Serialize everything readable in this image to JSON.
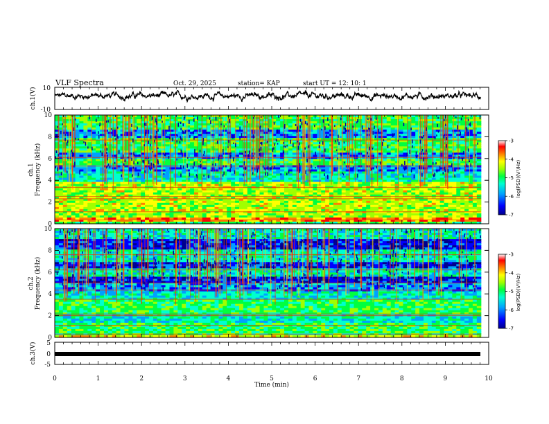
{
  "header": {
    "title": "VLF Spectra",
    "date": "Oct. 29, 2025",
    "station": "station= KAP",
    "start": "start  UT =   12: 10: 1"
  },
  "chart_data": [
    {
      "type": "line",
      "panel": "ch1-waveform",
      "ylabel": "ch.1(V)",
      "ylim": [
        -10,
        10
      ],
      "yticks": [
        "10",
        "-10"
      ],
      "xlim": [
        0,
        10
      ],
      "note": "noisy waveform ~ -3..+7 V"
    },
    {
      "type": "heatmap",
      "panel": "ch1-spectrogram",
      "ylabel": "ch.1",
      "ylabel2": "Frequency (kHz)",
      "ylim": [
        0,
        10
      ],
      "yticks": [
        "0",
        "2",
        "4",
        "6",
        "8",
        "10"
      ],
      "xlim": [
        0,
        10
      ],
      "colorbar": {
        "label": "log(PSD)(V²/Hz)",
        "range": [
          -7,
          -3
        ],
        "ticks": [
          "-3",
          "-4",
          "-5",
          "-6",
          "-7"
        ]
      }
    },
    {
      "type": "heatmap",
      "panel": "ch2-spectrogram",
      "ylabel": "ch.2",
      "ylabel2": "Frequency (kHz)",
      "ylim": [
        0,
        10
      ],
      "yticks": [
        "0",
        "2",
        "4",
        "6",
        "8",
        "10"
      ],
      "xlim": [
        0,
        10
      ],
      "colorbar": {
        "label": "log(PSD)(V²/Hz)",
        "range": [
          -7,
          -3
        ],
        "ticks": [
          "-3",
          "-4",
          "-5",
          "-6",
          "-7"
        ]
      }
    },
    {
      "type": "line",
      "panel": "ch3-waveform",
      "ylabel": "ch.3(V)",
      "ylim": [
        -5,
        5
      ],
      "yticks": [
        "5",
        "0",
        "-5"
      ],
      "xlim": [
        0,
        10
      ],
      "note": "thick flat line near 0 V"
    }
  ],
  "xaxis": {
    "label": "Time  (min)",
    "ticks": [
      "0",
      "1",
      "2",
      "3",
      "4",
      "5",
      "6",
      "7",
      "8",
      "9",
      "10"
    ]
  },
  "colors": {
    "line": "#000000",
    "colormap": [
      "#00008c",
      "#0000ff",
      "#00a0ff",
      "#00ffd0",
      "#00ff40",
      "#a0ff00",
      "#ffff00",
      "#ff8000",
      "#ff0000",
      "#ffffff"
    ]
  }
}
